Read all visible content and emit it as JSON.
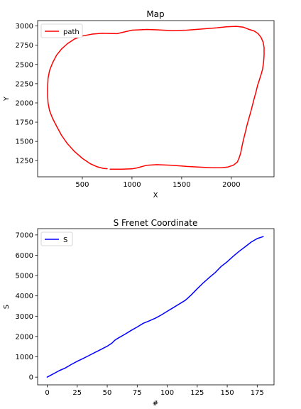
{
  "chart_data": [
    {
      "type": "line",
      "title": "Map",
      "xlabel": "X",
      "ylabel": "Y",
      "xlim": [
        50,
        2430
      ],
      "ylim": [
        1040,
        3070
      ],
      "xticks": [
        500,
        1000,
        1500,
        2000
      ],
      "xtick_labels": [
        "500",
        "1000",
        "1500",
        "2000"
      ],
      "yticks": [
        1250,
        1500,
        1750,
        2000,
        2250,
        2500,
        2750,
        3000
      ],
      "ytick_labels": [
        "1250",
        "1500",
        "1750",
        "2000",
        "2250",
        "2500",
        "2750",
        "3000"
      ],
      "grid": false,
      "legend_position": "top-left",
      "series": [
        {
          "name": "path",
          "color": "#ff0000",
          "x": [
            780,
            900,
            1000,
            1050,
            1150,
            1250,
            1400,
            1550,
            1700,
            1800,
            1900,
            1970,
            2020,
            2060,
            2080,
            2095,
            2105,
            2115,
            2130,
            2145,
            2160,
            2175,
            2195,
            2215,
            2235,
            2250,
            2265,
            2285,
            2300,
            2315,
            2325,
            2330,
            2330,
            2320,
            2300,
            2270,
            2230,
            2180,
            2120,
            2050,
            1950,
            1850,
            1700,
            1550,
            1400,
            1250,
            1150,
            1000,
            850,
            700,
            600,
            500,
            420,
            350,
            290,
            240,
            200,
            170,
            155,
            150,
            150,
            155,
            170,
            200,
            240,
            290,
            350,
            420,
            500,
            580,
            650,
            710,
            750
          ],
          "y": [
            1140,
            1140,
            1143,
            1155,
            1190,
            1198,
            1190,
            1175,
            1165,
            1158,
            1158,
            1168,
            1190,
            1230,
            1290,
            1350,
            1420,
            1480,
            1560,
            1640,
            1720,
            1790,
            1880,
            1980,
            2080,
            2150,
            2230,
            2310,
            2370,
            2440,
            2530,
            2620,
            2720,
            2790,
            2850,
            2900,
            2935,
            2955,
            2985,
            2995,
            2990,
            2975,
            2960,
            2945,
            2940,
            2950,
            2955,
            2945,
            2900,
            2905,
            2895,
            2870,
            2830,
            2770,
            2700,
            2620,
            2520,
            2420,
            2320,
            2200,
            2100,
            2000,
            1900,
            1800,
            1700,
            1580,
            1470,
            1370,
            1280,
            1210,
            1170,
            1150,
            1145
          ]
        }
      ]
    },
    {
      "type": "line",
      "title": "S Frenet Coordinate",
      "xlabel": "#",
      "ylabel": "S",
      "xlim": [
        -8,
        189
      ],
      "ylim": [
        -380,
        7310
      ],
      "xticks": [
        0,
        25,
        50,
        75,
        100,
        125,
        150,
        175
      ],
      "xtick_labels": [
        "0",
        "25",
        "50",
        "75",
        "100",
        "125",
        "150",
        "175"
      ],
      "yticks": [
        0,
        1000,
        2000,
        3000,
        4000,
        5000,
        6000,
        7000
      ],
      "ytick_labels": [
        "0",
        "1000",
        "2000",
        "3000",
        "4000",
        "5000",
        "6000",
        "7000"
      ],
      "grid": false,
      "legend_position": "top-left",
      "series": [
        {
          "name": "S",
          "color": "#0000ff",
          "x": [
            0,
            5,
            10,
            15,
            20,
            25,
            30,
            35,
            40,
            45,
            50,
            54,
            56,
            58,
            60,
            65,
            70,
            75,
            80,
            85,
            90,
            95,
            100,
            105,
            110,
            115,
            117,
            120,
            125,
            130,
            135,
            140,
            145,
            150,
            155,
            160,
            165,
            170,
            175,
            180
          ],
          "y": [
            0,
            160,
            320,
            450,
            620,
            780,
            920,
            1070,
            1220,
            1370,
            1520,
            1680,
            1800,
            1880,
            1950,
            2120,
            2300,
            2470,
            2650,
            2770,
            2900,
            3060,
            3240,
            3420,
            3600,
            3780,
            3880,
            4050,
            4350,
            4640,
            4900,
            5150,
            5450,
            5680,
            5950,
            6200,
            6420,
            6650,
            6820,
            6920
          ]
        }
      ]
    }
  ]
}
